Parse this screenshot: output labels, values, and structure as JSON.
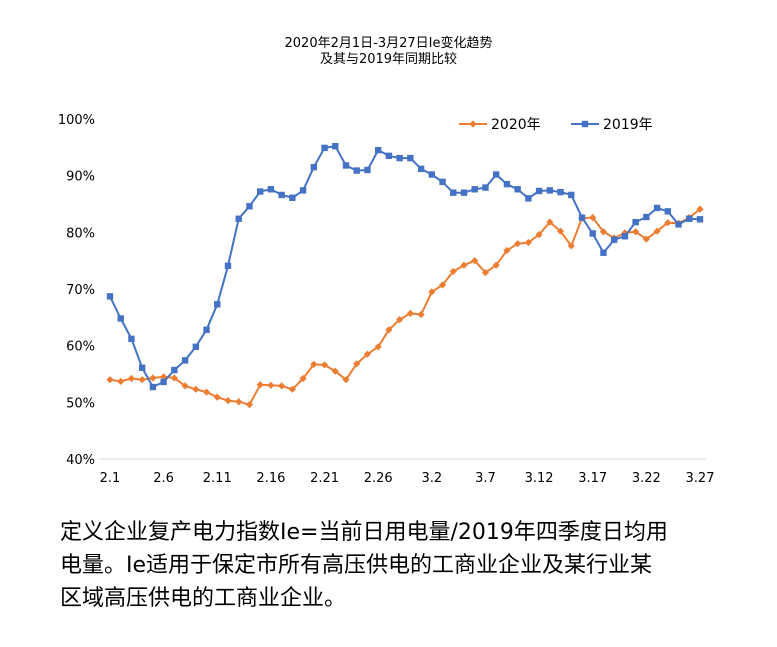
{
  "chart_data": {
    "type": "line",
    "title_line1": "2020年2月1日-3月27日Ie变化趋势",
    "title_line2": "及其与2019年同期比较",
    "ylim": [
      40,
      100
    ],
    "ytick_labels": [
      "40%",
      "50%",
      "60%",
      "70%",
      "80%",
      "90%",
      "100%"
    ],
    "x_tick_labels": [
      "2.1",
      "2.6",
      "2.11",
      "2.16",
      "2.21",
      "2.26",
      "3.2",
      "3.7",
      "3.12",
      "3.17",
      "3.22",
      "3.27"
    ],
    "legend_position": "top-right",
    "series": [
      {
        "name": "2020年",
        "color": "#ED7D31",
        "marker": "diamond",
        "values": [
          54.0,
          53.7,
          54.2,
          54.0,
          54.3,
          54.5,
          54.3,
          52.9,
          52.3,
          51.8,
          50.9,
          50.3,
          50.1,
          49.6,
          53.1,
          53.0,
          52.9,
          52.3,
          54.2,
          56.7,
          56.6,
          55.5,
          54.0,
          56.8,
          58.5,
          59.8,
          62.8,
          64.6,
          65.7,
          65.5,
          69.5,
          70.7,
          73.1,
          74.2,
          75.0,
          72.9,
          74.2,
          76.8,
          78.0,
          78.2,
          79.6,
          81.8,
          80.2,
          77.6,
          82.5,
          82.6,
          80.1,
          79.0,
          79.9,
          80.1,
          78.8,
          80.2,
          81.7,
          81.6,
          82.6,
          84.1
        ]
      },
      {
        "name": "2019年",
        "color": "#4472C4",
        "marker": "square",
        "values": [
          68.7,
          64.8,
          61.2,
          56.1,
          52.7,
          53.6,
          55.7,
          57.4,
          59.8,
          62.8,
          67.3,
          74.1,
          82.4,
          84.6,
          87.2,
          87.6,
          86.6,
          86.1,
          87.4,
          91.5,
          94.9,
          95.2,
          91.8,
          90.9,
          91.0,
          94.5,
          93.5,
          93.1,
          93.1,
          91.2,
          90.2,
          88.9,
          87.0,
          87.0,
          87.6,
          87.9,
          90.2,
          88.5,
          87.6,
          86.0,
          87.3,
          87.4,
          87.1,
          86.6,
          82.6,
          79.8,
          76.4,
          78.7,
          79.3,
          81.8,
          82.7,
          84.3,
          83.7,
          81.4,
          82.4,
          82.3
        ]
      }
    ]
  },
  "caption": {
    "line1": "定义企业复产电力指数Ie=当前日用电量/2019年四季度日均用",
    "line2": "电量。Ie适用于保定市所有高压供电的工商业企业及某行业某",
    "line3": "区域高压供电的工商业企业。"
  }
}
